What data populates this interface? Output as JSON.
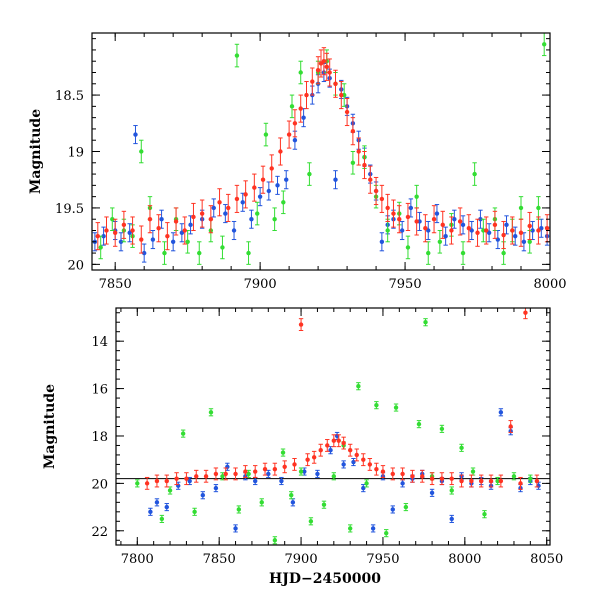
{
  "chart_data": [
    {
      "type": "scatter",
      "title": "",
      "xlabel": "",
      "ylabel": "Magnitude",
      "xlim": [
        7842,
        8000
      ],
      "ylim": [
        20.05,
        17.95
      ],
      "y_inverted": true,
      "xticks": [
        7850,
        7900,
        7950,
        8000
      ],
      "xtick_labels": [
        "7850",
        "7900",
        "7950",
        "8000"
      ],
      "yticks": [
        18.5,
        19,
        19.5,
        20
      ],
      "ytick_labels": [
        "18.5",
        "19",
        "19.5",
        "20"
      ],
      "grid": false,
      "legend": "none",
      "series": [
        {
          "color": "#2255dd",
          "error": 0.08,
          "x": [
            7843,
            7846,
            7850,
            7852,
            7855,
            7857,
            7860,
            7863,
            7866,
            7870,
            7873,
            7876,
            7880,
            7884,
            7888,
            7891,
            7894,
            7897,
            7900,
            7903,
            7906,
            7909,
            7912,
            7915,
            7918,
            7920,
            7922,
            7924,
            7926,
            7928,
            7930,
            7932,
            7934,
            7936,
            7938,
            7940,
            7942,
            7944,
            7946,
            7949,
            7952,
            7955,
            7958,
            7961,
            7964,
            7967,
            7970,
            7973,
            7976,
            7979,
            7982,
            7985,
            7988,
            7991,
            7994,
            7997,
            7999
          ],
          "y": [
            19.8,
            19.75,
            19.7,
            19.8,
            19.72,
            18.85,
            19.9,
            19.78,
            19.6,
            19.8,
            19.72,
            19.65,
            19.6,
            19.5,
            19.55,
            19.7,
            19.45,
            19.6,
            19.4,
            19.35,
            19.3,
            19.25,
            18.9,
            18.7,
            18.5,
            18.4,
            18.3,
            18.35,
            19.25,
            18.45,
            18.6,
            18.75,
            18.9,
            19.05,
            19.2,
            19.35,
            19.8,
            19.65,
            19.6,
            19.7,
            19.5,
            19.62,
            19.7,
            19.55,
            19.75,
            19.6,
            19.65,
            19.7,
            19.6,
            19.72,
            19.78,
            19.65,
            19.75,
            19.8,
            19.7,
            19.68,
            19.75
          ]
        },
        {
          "color": "#33dd33",
          "error": 0.1,
          "x": [
            7845,
            7849,
            7853,
            7856,
            7859,
            7862,
            7867,
            7871,
            7875,
            7879,
            7883,
            7887,
            7892,
            7896,
            7899,
            7902,
            7905,
            7908,
            7911,
            7914,
            7917,
            7920,
            7923,
            7926,
            7929,
            7932,
            7936,
            7940,
            7944,
            7948,
            7951,
            7954,
            7958,
            7962,
            7966,
            7970,
            7974,
            7977,
            7981,
            7984,
            7987,
            7990,
            7993,
            7996,
            7998
          ],
          "y": [
            19.85,
            19.6,
            19.7,
            19.75,
            19.0,
            19.5,
            19.9,
            19.6,
            19.8,
            19.9,
            19.7,
            19.85,
            18.15,
            19.9,
            19.55,
            18.85,
            19.6,
            19.45,
            18.6,
            18.3,
            19.2,
            18.3,
            18.2,
            18.4,
            18.5,
            19.1,
            19.05,
            19.4,
            19.7,
            19.55,
            19.85,
            19.4,
            19.9,
            19.8,
            19.65,
            19.9,
            19.2,
            19.7,
            19.6,
            19.9,
            19.7,
            19.5,
            19.8,
            19.5,
            18.05
          ]
        },
        {
          "color": "#ff3322",
          "error": 0.12,
          "x": [
            7844,
            7847,
            7850,
            7853,
            7856,
            7859,
            7862,
            7865,
            7868,
            7871,
            7874,
            7877,
            7880,
            7883,
            7886,
            7889,
            7892,
            7895,
            7898,
            7901,
            7904,
            7907,
            7910,
            7912,
            7914,
            7916,
            7918,
            7920,
            7921,
            7922,
            7923,
            7924,
            7926,
            7928,
            7930,
            7932,
            7934,
            7936,
            7938,
            7940,
            7942,
            7944,
            7946,
            7948,
            7951,
            7954,
            7957,
            7960,
            7963,
            7966,
            7969,
            7972,
            7975,
            7978,
            7981,
            7984,
            7987,
            7990,
            7993,
            7996,
            7999
          ],
          "y": [
            19.75,
            19.7,
            19.72,
            19.65,
            19.7,
            19.78,
            19.6,
            19.68,
            19.75,
            19.62,
            19.7,
            19.58,
            19.55,
            19.6,
            19.45,
            19.5,
            19.42,
            19.38,
            19.32,
            19.25,
            19.15,
            19.0,
            18.85,
            18.75,
            18.62,
            18.5,
            18.38,
            18.28,
            18.22,
            18.2,
            18.25,
            18.3,
            18.4,
            18.5,
            18.65,
            18.82,
            19.0,
            19.12,
            19.25,
            19.35,
            19.42,
            19.5,
            19.55,
            19.6,
            19.58,
            19.62,
            19.68,
            19.6,
            19.65,
            19.7,
            19.62,
            19.68,
            19.72,
            19.7,
            19.65,
            19.74,
            19.7,
            19.72,
            19.66,
            19.7,
            19.68
          ]
        }
      ]
    },
    {
      "type": "scatter",
      "title": "",
      "xlabel": "HJD−2450000",
      "ylabel": "Magnitude",
      "xlim": [
        7787,
        8052
      ],
      "ylim": [
        22.6,
        12.6
      ],
      "y_inverted": true,
      "xticks": [
        7800,
        7850,
        7900,
        7950,
        8000,
        8050
      ],
      "xtick_labels": [
        "7800",
        "7850",
        "7900",
        "7950",
        "8000",
        "8050"
      ],
      "yticks": [
        14,
        16,
        18,
        20,
        22
      ],
      "ytick_labels": [
        "14",
        "16",
        "18",
        "20",
        "22"
      ],
      "reference_line_y": 19.8,
      "grid": false,
      "legend": "none",
      "series": [
        {
          "color": "#2255dd",
          "error": 0.15,
          "x": [
            7808,
            7812,
            7818,
            7825,
            7832,
            7840,
            7848,
            7855,
            7860,
            7866,
            7872,
            7880,
            7888,
            7895,
            7902,
            7910,
            7918,
            7922,
            7926,
            7932,
            7938,
            7944,
            7950,
            7956,
            7962,
            7968,
            7974,
            7980,
            7986,
            7992,
            7998,
            8004,
            8010,
            8016,
            8022,
            8028,
            8034,
            8040,
            8045
          ],
          "y": [
            21.2,
            20.8,
            21.0,
            20.1,
            19.9,
            20.5,
            20.2,
            19.3,
            21.9,
            19.7,
            19.9,
            19.6,
            19.9,
            20.8,
            19.5,
            19.6,
            18.6,
            18.0,
            19.2,
            19.1,
            20.2,
            21.9,
            19.7,
            21.1,
            20.0,
            19.8,
            19.6,
            20.4,
            19.9,
            21.5,
            19.7,
            20.0,
            19.9,
            20.1,
            17.0,
            17.8,
            20.2,
            19.9,
            20.1
          ]
        },
        {
          "color": "#33dd33",
          "error": 0.15,
          "x": [
            7800,
            7815,
            7820,
            7828,
            7835,
            7845,
            7852,
            7862,
            7868,
            7876,
            7884,
            7889,
            7894,
            7900,
            7906,
            7914,
            7920,
            7926,
            7930,
            7935,
            7940,
            7946,
            7952,
            7958,
            7964,
            7972,
            7976,
            7980,
            7986,
            7992,
            7998,
            8005,
            8012,
            8020,
            8030,
            8040
          ],
          "y": [
            20.0,
            21.5,
            20.3,
            17.9,
            21.2,
            17.0,
            19.7,
            21.1,
            19.6,
            20.8,
            22.4,
            18.7,
            20.5,
            19.5,
            21.6,
            20.9,
            19.7,
            18.4,
            21.9,
            15.9,
            20.0,
            16.7,
            22.1,
            16.8,
            21.0,
            17.5,
            13.2,
            19.7,
            17.7,
            20.3,
            18.5,
            19.5,
            21.3,
            19.9,
            19.7,
            19.8
          ]
        },
        {
          "color": "#ff3322",
          "error": 0.25,
          "x": [
            7806,
            7812,
            7818,
            7824,
            7830,
            7836,
            7842,
            7848,
            7854,
            7860,
            7866,
            7872,
            7878,
            7884,
            7890,
            7896,
            7900,
            7904,
            7908,
            7912,
            7916,
            7920,
            7923,
            7926,
            7930,
            7934,
            7938,
            7942,
            7946,
            7950,
            7956,
            7962,
            7968,
            7974,
            7980,
            7986,
            7992,
            7998,
            8004,
            8010,
            8016,
            8022,
            8028,
            8034,
            8037,
            8044
          ],
          "y": [
            20.0,
            19.9,
            19.9,
            19.8,
            19.8,
            19.7,
            19.7,
            19.6,
            19.6,
            19.6,
            19.5,
            19.5,
            19.4,
            19.4,
            19.3,
            19.2,
            13.3,
            19.0,
            18.9,
            18.6,
            18.4,
            18.2,
            18.2,
            18.3,
            18.6,
            18.8,
            19.0,
            19.2,
            19.4,
            19.5,
            19.6,
            19.6,
            19.7,
            19.7,
            19.8,
            19.8,
            19.8,
            19.9,
            19.9,
            19.9,
            19.9,
            19.9,
            17.6,
            20.0,
            12.8,
            19.9
          ]
        }
      ]
    }
  ]
}
